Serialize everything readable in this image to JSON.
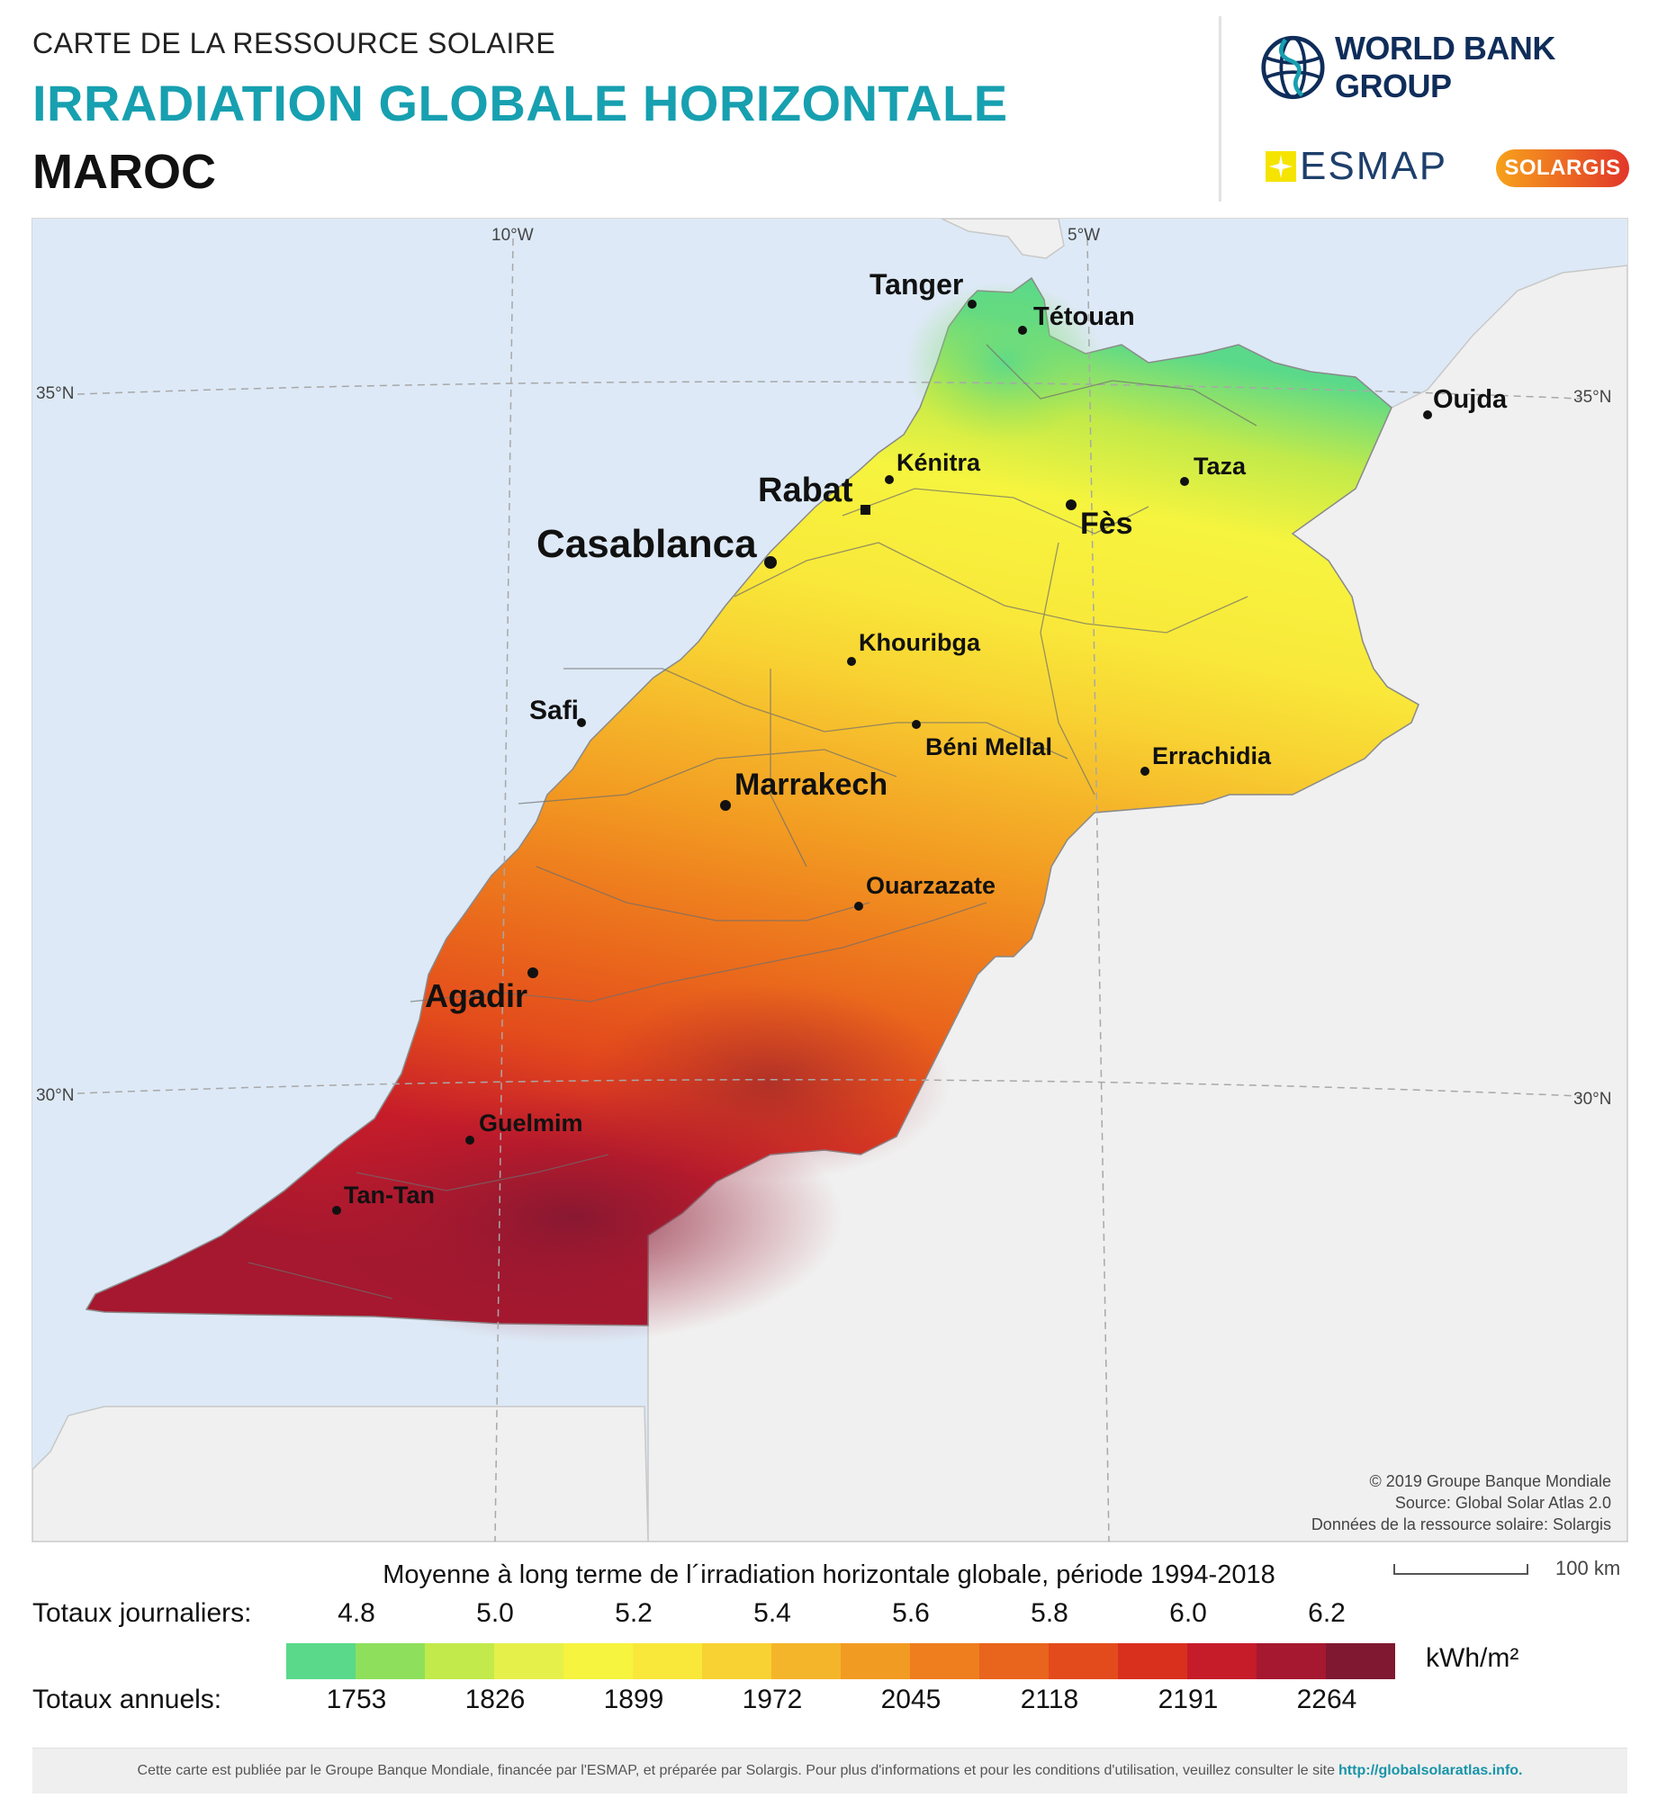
{
  "header": {
    "subtitle": "CARTE DE LA RESSOURCE SOLAIRE",
    "title": "IRRADIATION GLOBALE HORIZONTALE",
    "country": "MAROC"
  },
  "logos": {
    "world_bank": "WORLD BANK GROUP",
    "esmap": "ESMAP",
    "solargis": "SOLARGIS"
  },
  "map": {
    "graticule": {
      "lon_10w": "10°W",
      "lon_5w": "5°W",
      "lat_35_left": "35°N",
      "lat_35_right": "35°N",
      "lat_30_left": "30°N",
      "lat_30_right": "30°N"
    },
    "cities": {
      "tanger": "Tanger",
      "tetouan": "Tétouan",
      "oujda": "Oujda",
      "kenitra": "Kénitra",
      "taza": "Taza",
      "rabat": "Rabat",
      "fes": "Fès",
      "casablanca": "Casablanca",
      "khouribga": "Khouribga",
      "safi": "Safi",
      "beni_mellal": "Béni Mellal",
      "errachidia": "Errachidia",
      "marrakech": "Marrakech",
      "ouarzazate": "Ouarzazate",
      "agadir": "Agadir",
      "guelmim": "Guelmim",
      "tan_tan": "Tan-Tan"
    },
    "credits": [
      "© 2019 Groupe Banque Mondiale",
      "Source: Global Solar Atlas 2.0",
      "Données de la ressource solaire: Solargis"
    ],
    "scale_label": "100 km",
    "colors": {
      "sea": "#dde9f6",
      "land_outside": "#f0f0f0"
    }
  },
  "legend": {
    "title": "Moyenne à long terme de l´irradiation horizontale globale, période 1994-2018",
    "daily_label": "Totaux journaliers:",
    "annual_label": "Totaux annuels:",
    "unit": "kWh/m²",
    "daily_ticks": [
      "4.8",
      "5.0",
      "5.2",
      "5.4",
      "5.6",
      "5.8",
      "6.0",
      "6.2"
    ],
    "annual_ticks": [
      "1753",
      "1826",
      "1899",
      "1972",
      "2045",
      "2118",
      "2191",
      "2264"
    ],
    "colors": [
      "#5ad98a",
      "#8ee05c",
      "#c2ea4a",
      "#e6f04a",
      "#f6f43e",
      "#f9e83a",
      "#f8d232",
      "#f5b52a",
      "#f29b22",
      "#ee7e1e",
      "#e9641c",
      "#e34b1c",
      "#d9301e",
      "#c61c2a",
      "#a5182f",
      "#801832"
    ]
  },
  "footer": {
    "text": "Cette carte est publiée par le Groupe Banque Mondiale, financée par l'ESMAP, et préparée par Solargis. Pour plus d'informations et pour les conditions d'utilisation, veuillez consulter le site",
    "link": "http://globalsolaratlas.info."
  }
}
